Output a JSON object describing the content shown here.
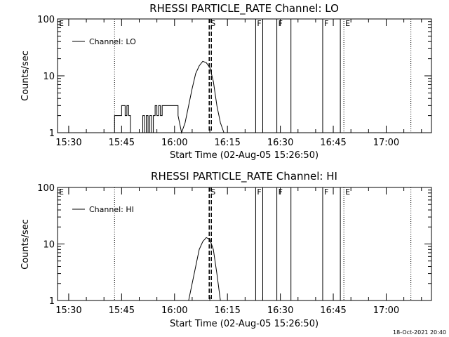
{
  "chart_data": [
    {
      "type": "line",
      "title": "RHESSI PARTICLE_RATE Channel: LO",
      "xlabel": "Start Time (02-Aug-05 15:26:50)",
      "ylabel": "Counts/sec",
      "yscale": "log",
      "ylim": [
        1,
        100
      ],
      "xlim": [
        "15:26:50",
        "17:12:50"
      ],
      "yticks": [
        "1",
        "10",
        "100"
      ],
      "xticks": [
        "15:30",
        "15:45",
        "16:00",
        "16:15",
        "16:30",
        "16:45",
        "17:00"
      ],
      "legend": "top-left",
      "series": [
        {
          "name": "Channel: LO",
          "x": [
            "15:43",
            "15:43",
            "15:45",
            "15:45",
            "15:46",
            "15:46",
            "15:46.5",
            "15:46.5",
            "15:47",
            "15:47",
            "15:47.5",
            "15:47.5",
            "15:48",
            "15:48",
            "15:51",
            "15:51",
            "15:51.5",
            "15:51.5",
            "15:52",
            "15:52",
            "15:52.5",
            "15:52.5",
            "15:53",
            "15:53",
            "15:53.5",
            "15:53.5",
            "15:54",
            "15:54",
            "15:54.5",
            "15:54.5",
            "15:55",
            "15:55",
            "15:55.5",
            "15:55.5",
            "15:56",
            "15:56",
            "15:56.5",
            "15:56.5",
            "15:57",
            "15:57",
            "15:59",
            "15:59",
            "16:01",
            "16:01",
            "16:02",
            "16:03",
            "16:04",
            "16:05",
            "16:06",
            "16:07",
            "16:08",
            "16:09",
            "16:10",
            "16:11",
            "16:12",
            "16:13",
            "16:14"
          ],
          "y": [
            1,
            2,
            2,
            3,
            3,
            2,
            2,
            3,
            3,
            2,
            2,
            1,
            1,
            1,
            1,
            2,
            2,
            1,
            1,
            2,
            2,
            1,
            1,
            2,
            2,
            1,
            1,
            2,
            2,
            3,
            3,
            2,
            2,
            3,
            3,
            2,
            2,
            3,
            3,
            3,
            3,
            3,
            3,
            2,
            1,
            1.5,
            3,
            6,
            11,
            15,
            18,
            17,
            14,
            8,
            3,
            1.5,
            1
          ]
        }
      ],
      "markers": [
        {
          "label": "E",
          "x": "15:26:50",
          "style": "dotted"
        },
        {
          "label": "S",
          "x": "16:09:50",
          "style": "dashed"
        },
        {
          "label": "F",
          "x": "16:23",
          "style": "solid"
        },
        {
          "label": "",
          "x": "16:25",
          "style": "solid"
        },
        {
          "label": "F",
          "x": "16:29",
          "style": "solid"
        },
        {
          "label": "",
          "x": "16:33",
          "style": "solid"
        },
        {
          "label": "F",
          "x": "16:42",
          "style": "solid"
        },
        {
          "label": "",
          "x": "16:47",
          "style": "solid"
        },
        {
          "label": "E",
          "x": "16:48",
          "style": "dotted"
        },
        {
          "label": "",
          "x": "15:43",
          "style": "dotted"
        },
        {
          "label": "",
          "x": "17:07",
          "style": "dotted"
        }
      ]
    },
    {
      "type": "line",
      "title": "RHESSI PARTICLE_RATE Channel: HI",
      "xlabel": "Start Time (02-Aug-05 15:26:50)",
      "ylabel": "Counts/sec",
      "yscale": "log",
      "ylim": [
        1,
        100
      ],
      "xlim": [
        "15:26:50",
        "17:12:50"
      ],
      "yticks": [
        "1",
        "10",
        "100"
      ],
      "xticks": [
        "15:30",
        "15:45",
        "16:00",
        "16:15",
        "16:30",
        "16:45",
        "17:00"
      ],
      "legend": "top-left",
      "series": [
        {
          "name": "Channel: HI",
          "x": [
            "16:04",
            "16:05",
            "16:06",
            "16:07",
            "16:08",
            "16:09",
            "16:10",
            "16:11",
            "16:12",
            "16:13"
          ],
          "y": [
            1,
            2,
            4,
            8,
            11,
            13,
            12,
            8,
            3,
            1
          ]
        }
      ],
      "markers": [
        {
          "label": "E",
          "x": "15:26:50",
          "style": "dotted"
        },
        {
          "label": "S",
          "x": "16:09:50",
          "style": "dashed"
        },
        {
          "label": "F",
          "x": "16:23",
          "style": "solid"
        },
        {
          "label": "",
          "x": "16:25",
          "style": "solid"
        },
        {
          "label": "F",
          "x": "16:29",
          "style": "solid"
        },
        {
          "label": "",
          "x": "16:33",
          "style": "solid"
        },
        {
          "label": "F",
          "x": "16:42",
          "style": "solid"
        },
        {
          "label": "",
          "x": "16:47",
          "style": "solid"
        },
        {
          "label": "E",
          "x": "16:48",
          "style": "dotted"
        },
        {
          "label": "",
          "x": "15:43",
          "style": "dotted"
        },
        {
          "label": "",
          "x": "17:07",
          "style": "dotted"
        }
      ]
    }
  ],
  "footer": {
    "timestamp": "18-Oct-2021 20:40"
  }
}
